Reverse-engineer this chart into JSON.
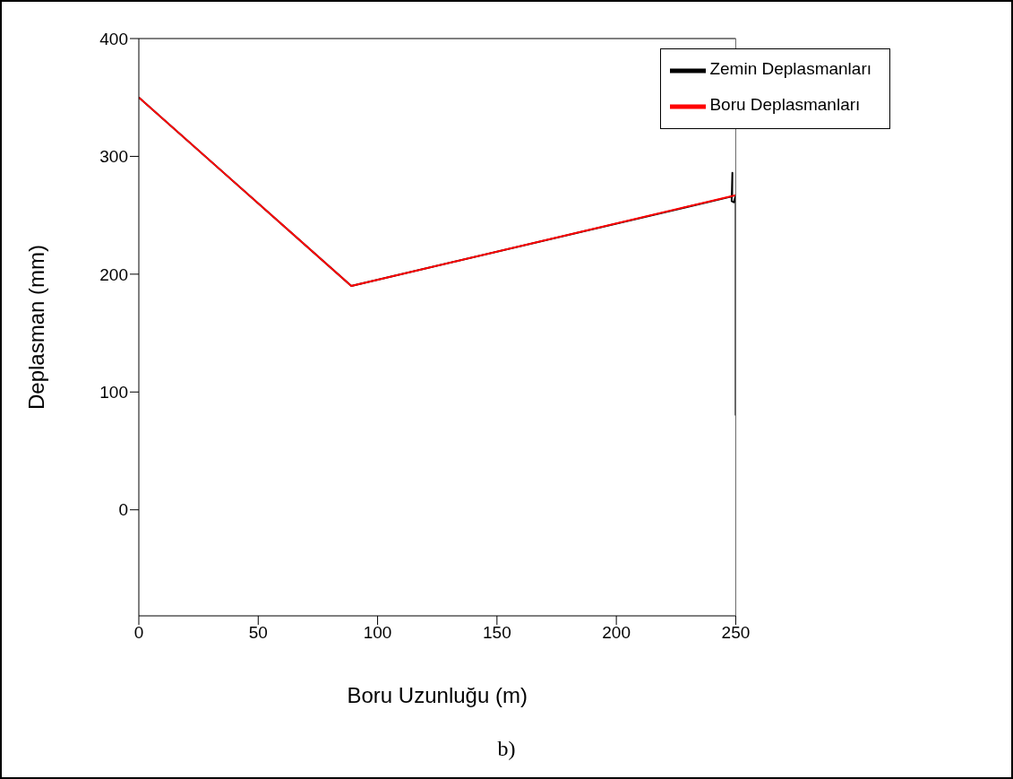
{
  "chart_data": {
    "type": "line",
    "xlabel": "Boru Uzunluğu (m)",
    "ylabel": "Deplasman (mm)",
    "annotations": [
      "b)"
    ],
    "xlim": [
      0,
      250
    ],
    "xticks": [
      0,
      50,
      100,
      150,
      200,
      250
    ],
    "ylim": [
      -90,
      400
    ],
    "yticks": [
      0,
      100,
      200,
      300,
      400
    ],
    "grid": false,
    "legend": "top right",
    "marker": "none",
    "line_style": "solid",
    "series": [
      {
        "name": "Zemin Deplasmanları",
        "color": "#000000",
        "x": [
          0,
          89,
          248.5,
          248.6,
          248.3,
          249.2,
          250,
          250,
          250
        ],
        "values": [
          350,
          190,
          266,
          286,
          262,
          261,
          267,
          185,
          80
        ]
      },
      {
        "name": "Boru Deplasmanları",
        "color": "#ff0000",
        "x": [
          0,
          89,
          250
        ],
        "values": [
          350,
          190,
          267
        ]
      }
    ]
  }
}
